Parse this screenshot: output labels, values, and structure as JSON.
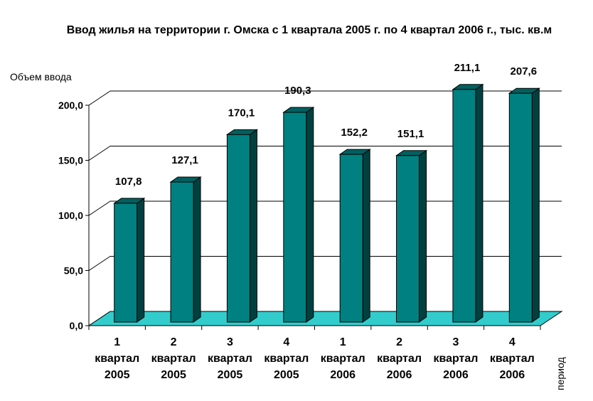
{
  "chart_data": {
    "type": "bar",
    "title": "Ввод жилья на территории г. Омска с 1 квартала 2005 г. по 4 квартал 2006 г., тыс. кв.м",
    "ylabel": "Объем ввода",
    "xlabel": "период",
    "ylim": [
      0,
      200
    ],
    "yticks": [
      "0,0",
      "50,0",
      "100,0",
      "150,0",
      "200,0"
    ],
    "ytick_values": [
      0,
      50,
      100,
      150,
      200
    ],
    "categories": [
      [
        "1",
        "квартал",
        "2005"
      ],
      [
        "2",
        "квартал",
        "2005"
      ],
      [
        "3",
        "квартал",
        "2005"
      ],
      [
        "4",
        "квартал",
        "2005"
      ],
      [
        "1",
        "квартал",
        "2006"
      ],
      [
        "2",
        "квартал",
        "2006"
      ],
      [
        "3",
        "квартал",
        "2006"
      ],
      [
        "4",
        "квартал",
        "2006"
      ]
    ],
    "values": [
      107.8,
      127.1,
      170.1,
      190.3,
      152.2,
      151.1,
      211.1,
      207.6
    ],
    "value_labels": [
      "107,8",
      "127,1",
      "170,1",
      "190,3",
      "152,2",
      "151,1",
      "211,1",
      "207,6"
    ],
    "grid": true,
    "colors": {
      "bar_front": "#008080",
      "bar_side": "#004040",
      "bar_top": "#006060",
      "floor": "#33CCCC"
    }
  }
}
